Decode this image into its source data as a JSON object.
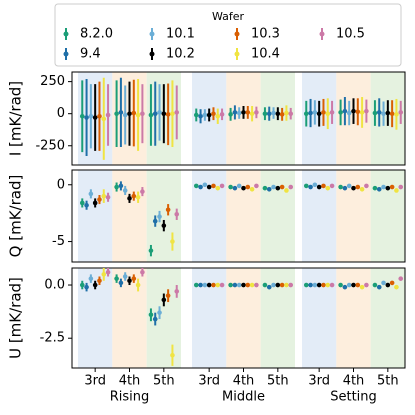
{
  "chart_data": {
    "type": "errorbar",
    "legend_title": "Wafer",
    "categories": [
      "3rd",
      "4th",
      "5th"
    ],
    "groups": [
      "Rising",
      "Middle",
      "Setting"
    ],
    "background_colors": [
      "#e3ecf7",
      "#fdeedd",
      "#e5f2e0"
    ],
    "series": [
      {
        "name": "8.2.0",
        "color": "#1b9e77"
      },
      {
        "name": "9.4",
        "color": "#1f6fa8"
      },
      {
        "name": "10.1",
        "color": "#6baed6"
      },
      {
        "name": "10.2",
        "color": "#000000"
      },
      {
        "name": "10.3",
        "color": "#d95f02"
      },
      {
        "name": "10.4",
        "color": "#f0e442"
      },
      {
        "name": "10.5",
        "color": "#cc79a7"
      }
    ],
    "panels": [
      {
        "ylabel": "I [mK/rad]",
        "ylim": [
          -400,
          325
        ],
        "yticks": [
          -250,
          0,
          250
        ],
        "values": [
          [
            -20,
            0,
            -10,
            -10,
            -5,
            0,
            0,
            10,
            5
          ],
          [
            -30,
            10,
            0,
            -20,
            10,
            0,
            5,
            20,
            10
          ],
          [
            -20,
            -10,
            10,
            -10,
            5,
            5,
            10,
            5,
            0
          ],
          [
            -30,
            0,
            0,
            -10,
            10,
            0,
            0,
            20,
            5
          ],
          [
            -20,
            5,
            -5,
            0,
            10,
            -5,
            10,
            15,
            0
          ],
          [
            -40,
            -10,
            0,
            -20,
            0,
            5,
            0,
            10,
            -5
          ],
          [
            -10,
            0,
            10,
            -5,
            10,
            0,
            10,
            20,
            10
          ]
        ],
        "errors": [
          [
            280,
            260,
            240,
            50,
            50,
            50,
            100,
            100,
            100
          ],
          [
            300,
            270,
            250,
            55,
            55,
            55,
            110,
            110,
            110
          ],
          [
            250,
            230,
            220,
            45,
            45,
            45,
            95,
            95,
            95
          ],
          [
            260,
            250,
            230,
            50,
            50,
            50,
            100,
            100,
            100
          ],
          [
            270,
            260,
            240,
            50,
            50,
            50,
            105,
            105,
            105
          ],
          [
            320,
            280,
            260,
            60,
            60,
            60,
            120,
            120,
            120
          ],
          [
            240,
            230,
            210,
            45,
            45,
            45,
            90,
            90,
            90
          ]
        ]
      },
      {
        "ylabel": "Q [mK/rad]",
        "ylim": [
          -6.8,
          1.3
        ],
        "yticks": [
          -5,
          0
        ],
        "values": [
          [
            -1.6,
            -0.2,
            -5.8,
            -0.1,
            -0.2,
            -0.3,
            -0.1,
            -0.2,
            -0.3
          ],
          [
            -1.8,
            -0.1,
            -3.2,
            -0.2,
            -0.3,
            -0.4,
            -0.2,
            -0.3,
            -0.4
          ],
          [
            -0.8,
            -0.5,
            -2.8,
            0.0,
            -0.1,
            -0.2,
            0.0,
            -0.1,
            -0.2
          ],
          [
            -1.6,
            -1.2,
            -3.6,
            -0.2,
            -0.3,
            -0.3,
            -0.2,
            -0.3,
            -0.3
          ],
          [
            -1.3,
            -1.0,
            -2.2,
            -0.1,
            -0.2,
            -0.2,
            -0.1,
            -0.2,
            -0.2
          ],
          [
            -1.0,
            -1.1,
            -5.0,
            -0.3,
            -0.4,
            -0.5,
            -0.3,
            -0.4,
            -0.5
          ],
          [
            -1.1,
            -0.6,
            -2.6,
            -0.1,
            -0.1,
            -0.2,
            -0.1,
            -0.1,
            -0.2
          ]
        ],
        "errors": [
          [
            0.4,
            0.4,
            0.5,
            0.1,
            0.1,
            0.1,
            0.1,
            0.1,
            0.1
          ],
          [
            0.4,
            0.4,
            0.5,
            0.1,
            0.1,
            0.1,
            0.1,
            0.1,
            0.1
          ],
          [
            0.4,
            0.4,
            0.5,
            0.1,
            0.1,
            0.1,
            0.1,
            0.1,
            0.1
          ],
          [
            0.4,
            0.4,
            0.5,
            0.1,
            0.1,
            0.1,
            0.1,
            0.1,
            0.1
          ],
          [
            0.4,
            0.4,
            0.5,
            0.1,
            0.1,
            0.1,
            0.1,
            0.1,
            0.1
          ],
          [
            0.6,
            0.5,
            0.8,
            0.1,
            0.1,
            0.1,
            0.1,
            0.1,
            0.1
          ],
          [
            0.4,
            0.4,
            0.5,
            0.1,
            0.1,
            0.1,
            0.1,
            0.1,
            0.1
          ]
        ]
      },
      {
        "ylabel": "U [mK/rad]",
        "ylim": [
          -3.9,
          0.8
        ],
        "yticks": [
          {
            "value": -2.5,
            "label": "-2.5"
          },
          {
            "value": 0,
            "label": "0.0"
          }
        ],
        "values": [
          [
            0.0,
            0.3,
            -1.4,
            0.0,
            0.0,
            0.0,
            0.0,
            0.0,
            0.0
          ],
          [
            -0.1,
            0.1,
            -1.6,
            0.0,
            0.0,
            -0.1,
            0.0,
            -0.1,
            -0.1
          ],
          [
            0.3,
            0.4,
            -1.3,
            0.0,
            0.0,
            0.0,
            0.0,
            0.0,
            0.1
          ],
          [
            0.0,
            0.2,
            -0.7,
            0.0,
            0.0,
            0.0,
            0.0,
            0.0,
            0.0
          ],
          [
            0.2,
            0.3,
            -0.5,
            0.0,
            0.0,
            0.0,
            0.0,
            0.0,
            0.1
          ],
          [
            0.5,
            0.0,
            -3.3,
            0.0,
            0.0,
            0.0,
            0.0,
            -0.1,
            -0.1
          ],
          [
            0.6,
            0.6,
            -0.3,
            0.0,
            0.0,
            0.0,
            0.0,
            0.0,
            0.3
          ]
        ],
        "errors": [
          [
            0.2,
            0.2,
            0.3,
            0.05,
            0.05,
            0.05,
            0.05,
            0.05,
            0.05
          ],
          [
            0.2,
            0.2,
            0.3,
            0.05,
            0.05,
            0.05,
            0.05,
            0.05,
            0.05
          ],
          [
            0.2,
            0.2,
            0.3,
            0.05,
            0.05,
            0.05,
            0.05,
            0.05,
            0.05
          ],
          [
            0.2,
            0.2,
            0.3,
            0.05,
            0.05,
            0.05,
            0.05,
            0.05,
            0.05
          ],
          [
            0.2,
            0.2,
            0.3,
            0.05,
            0.05,
            0.05,
            0.05,
            0.05,
            0.05
          ],
          [
            0.3,
            0.3,
            0.5,
            0.05,
            0.05,
            0.05,
            0.05,
            0.05,
            0.05
          ],
          [
            0.2,
            0.2,
            0.3,
            0.05,
            0.05,
            0.05,
            0.05,
            0.05,
            0.05
          ]
        ]
      }
    ]
  }
}
